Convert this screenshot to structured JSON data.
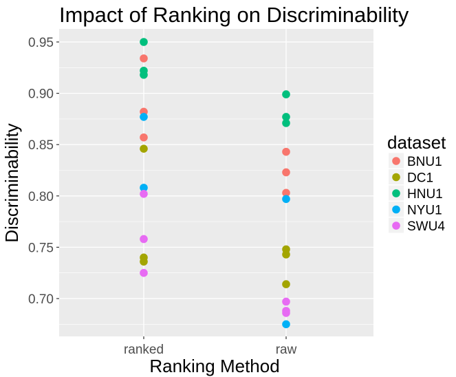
{
  "chart_data": {
    "type": "scatter",
    "title": "Impact of Ranking on Discriminability",
    "xlabel": "Ranking Method",
    "ylabel": "Discriminability",
    "categories": [
      "ranked",
      "raw"
    ],
    "ylim": [
      0.665,
      0.962
    ],
    "yticks": [
      0.7,
      0.75,
      0.8,
      0.85,
      0.9,
      0.95
    ],
    "ytick_labels": [
      "0.70",
      "0.75",
      "0.80",
      "0.85",
      "0.90",
      "0.95"
    ],
    "grid": true,
    "legend": {
      "title": "dataset",
      "position": "right"
    },
    "series": [
      {
        "name": "BNU1",
        "color": "#F8766D",
        "points": [
          {
            "x": "ranked",
            "y": 0.934
          },
          {
            "x": "ranked",
            "y": 0.882
          },
          {
            "x": "ranked",
            "y": 0.857
          },
          {
            "x": "raw",
            "y": 0.843
          },
          {
            "x": "raw",
            "y": 0.823
          },
          {
            "x": "raw",
            "y": 0.803
          }
        ]
      },
      {
        "name": "DC1",
        "color": "#A3A500",
        "points": [
          {
            "x": "ranked",
            "y": 0.846
          },
          {
            "x": "ranked",
            "y": 0.74
          },
          {
            "x": "ranked",
            "y": 0.736
          },
          {
            "x": "raw",
            "y": 0.748
          },
          {
            "x": "raw",
            "y": 0.743
          },
          {
            "x": "raw",
            "y": 0.714
          }
        ]
      },
      {
        "name": "HNU1",
        "color": "#00BF7D",
        "points": [
          {
            "x": "ranked",
            "y": 0.95
          },
          {
            "x": "ranked",
            "y": 0.922
          },
          {
            "x": "ranked",
            "y": 0.918
          },
          {
            "x": "raw",
            "y": 0.899
          },
          {
            "x": "raw",
            "y": 0.877
          },
          {
            "x": "raw",
            "y": 0.871
          }
        ]
      },
      {
        "name": "NYU1",
        "color": "#00B0F6",
        "points": [
          {
            "x": "ranked",
            "y": 0.877
          },
          {
            "x": "ranked",
            "y": 0.808
          },
          {
            "x": "raw",
            "y": 0.797
          },
          {
            "x": "raw",
            "y": 0.675
          }
        ]
      },
      {
        "name": "SWU4",
        "color": "#E76BF3",
        "points": [
          {
            "x": "ranked",
            "y": 0.802
          },
          {
            "x": "ranked",
            "y": 0.758
          },
          {
            "x": "ranked",
            "y": 0.725
          },
          {
            "x": "raw",
            "y": 0.697
          },
          {
            "x": "raw",
            "y": 0.688
          },
          {
            "x": "raw",
            "y": 0.686
          }
        ]
      }
    ]
  }
}
